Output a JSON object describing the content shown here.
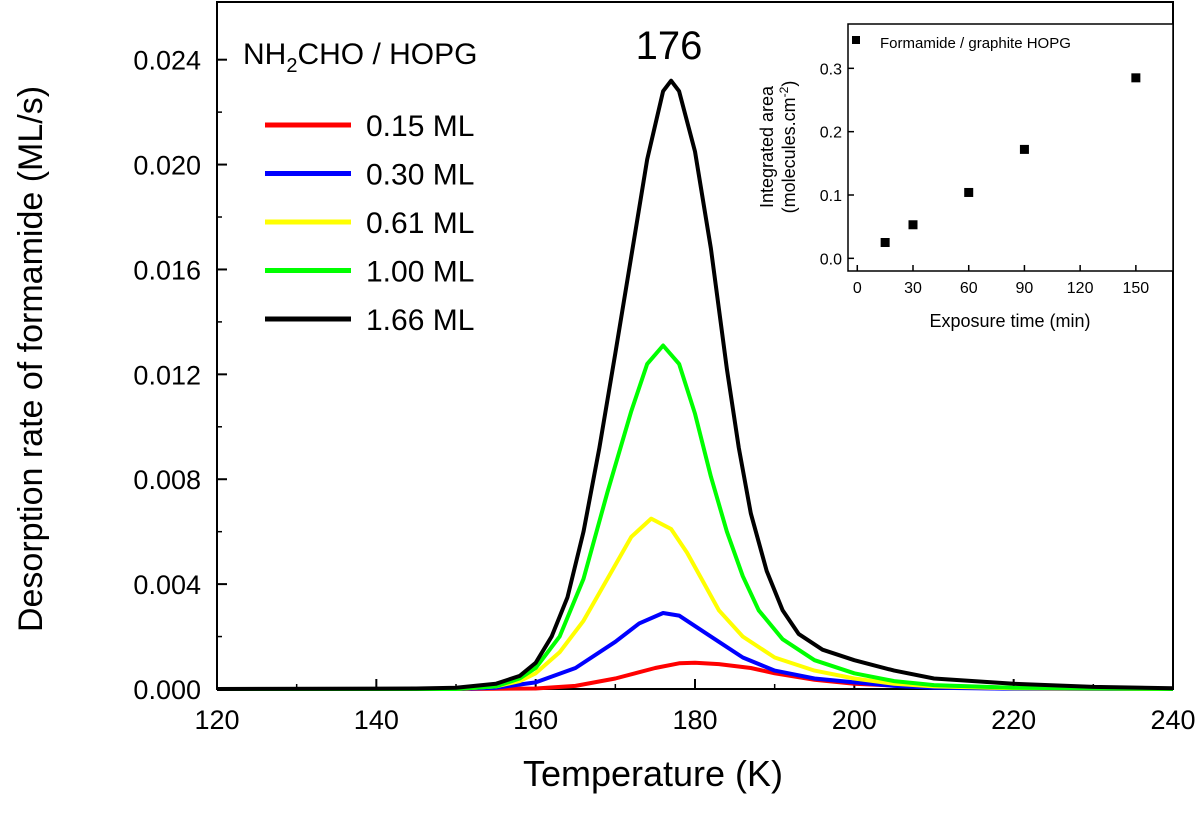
{
  "main_chart": {
    "xlabel": "Temperature (K)",
    "ylabel": "Desorption rate of formamide (ML/s)",
    "xlim": [
      120,
      240
    ],
    "ylim": [
      0,
      0.0262
    ],
    "xticks": [
      120,
      140,
      160,
      180,
      200,
      220,
      240
    ],
    "yticks": [
      "0.000",
      "0.004",
      "0.008",
      "0.012",
      "0.016",
      "0.020",
      "0.024"
    ],
    "system_label": {
      "prefix": "NH",
      "sub": "2",
      "suffix": "CHO / HOPG"
    },
    "peak_label": "176",
    "legend_position": "upper-left"
  },
  "inset_chart": {
    "xlabel": "Exposure time (min)",
    "ylabel_line1": "Integrated area",
    "ylabel_line2": "(molecules.cm",
    "ylabel_sup": "-2",
    "ylabel_close": ")",
    "legend_label": "Formamide / graphite HOPG",
    "xticks": [
      "0",
      "30",
      "60",
      "90",
      "120",
      "150"
    ],
    "yticks": [
      "0.0",
      "0.1",
      "0.2",
      "0.3"
    ]
  },
  "chart_data": [
    {
      "type": "line",
      "x_unit": "K",
      "xlim": [
        120,
        240
      ],
      "ylim": [
        0,
        0.0262
      ],
      "grid": false,
      "series": [
        {
          "name": "0.15 ML",
          "color": "#ff0000",
          "peak_T": 179.5,
          "peak_rate": 0.001,
          "points": [
            [
              120,
              0
            ],
            [
              150,
              0
            ],
            [
              160,
              2e-05
            ],
            [
              165,
              0.00012
            ],
            [
              170,
              0.0004
            ],
            [
              175,
              0.0008
            ],
            [
              178,
              0.00098
            ],
            [
              180,
              0.001
            ],
            [
              183,
              0.00095
            ],
            [
              187,
              0.0008
            ],
            [
              190,
              0.0006
            ],
            [
              195,
              0.00035
            ],
            [
              200,
              0.0002
            ],
            [
              210,
              6e-05
            ],
            [
              220,
              2e-05
            ],
            [
              240,
              0
            ]
          ]
        },
        {
          "name": "0.30 ML",
          "color": "#0000ff",
          "peak_T": 176,
          "peak_rate": 0.0029,
          "points": [
            [
              120,
              0
            ],
            [
              150,
              0
            ],
            [
              155,
              5e-05
            ],
            [
              160,
              0.00025
            ],
            [
              165,
              0.0008
            ],
            [
              170,
              0.0018
            ],
            [
              173,
              0.0025
            ],
            [
              176,
              0.0029
            ],
            [
              178,
              0.0028
            ],
            [
              180,
              0.0024
            ],
            [
              183,
              0.0018
            ],
            [
              186,
              0.0012
            ],
            [
              190,
              0.0007
            ],
            [
              195,
              0.0004
            ],
            [
              200,
              0.00025
            ],
            [
              205,
              0.00012
            ],
            [
              210,
              5e-05
            ],
            [
              220,
              1e-05
            ],
            [
              240,
              0
            ]
          ]
        },
        {
          "name": "0.61 ML",
          "color": "#ffff00",
          "peak_T": 174.5,
          "peak_rate": 0.0065,
          "points": [
            [
              120,
              0
            ],
            [
              150,
              0
            ],
            [
              155,
              0.0001
            ],
            [
              158,
              0.0003
            ],
            [
              160,
              0.0006
            ],
            [
              163,
              0.0014
            ],
            [
              166,
              0.0026
            ],
            [
              169,
              0.0042
            ],
            [
              172,
              0.0058
            ],
            [
              174.5,
              0.0065
            ],
            [
              177,
              0.0061
            ],
            [
              179,
              0.0052
            ],
            [
              181,
              0.0041
            ],
            [
              183,
              0.003
            ],
            [
              186,
              0.002
            ],
            [
              190,
              0.0012
            ],
            [
              195,
              0.0007
            ],
            [
              200,
              0.0004
            ],
            [
              205,
              0.0002
            ],
            [
              210,
              0.0001
            ],
            [
              220,
              3e-05
            ],
            [
              240,
              0
            ]
          ]
        },
        {
          "name": "1.00 ML",
          "color": "#00ff00",
          "peak_T": 176,
          "peak_rate": 0.0131,
          "points": [
            [
              120,
              0
            ],
            [
              150,
              0
            ],
            [
              155,
              0.0001
            ],
            [
              158,
              0.0004
            ],
            [
              160,
              0.0008
            ],
            [
              163,
              0.002
            ],
            [
              166,
              0.0042
            ],
            [
              169,
              0.0075
            ],
            [
              172,
              0.0106
            ],
            [
              174,
              0.0124
            ],
            [
              176,
              0.0131
            ],
            [
              178,
              0.0124
            ],
            [
              180,
              0.0105
            ],
            [
              182,
              0.0081
            ],
            [
              184,
              0.006
            ],
            [
              186,
              0.0043
            ],
            [
              188,
              0.003
            ],
            [
              191,
              0.0019
            ],
            [
              195,
              0.0011
            ],
            [
              200,
              0.0006
            ],
            [
              205,
              0.0003
            ],
            [
              210,
              0.00015
            ],
            [
              220,
              5e-05
            ],
            [
              240,
              0
            ]
          ]
        },
        {
          "name": "1.66 ML",
          "color": "#000000",
          "peak_T": 177,
          "peak_rate": 0.0232,
          "points": [
            [
              120,
              0
            ],
            [
              145,
              2e-05
            ],
            [
              150,
              5e-05
            ],
            [
              155,
              0.0002
            ],
            [
              158,
              0.0005
            ],
            [
              160,
              0.001
            ],
            [
              162,
              0.002
            ],
            [
              164,
              0.0035
            ],
            [
              166,
              0.006
            ],
            [
              168,
              0.0092
            ],
            [
              170,
              0.0128
            ],
            [
              172,
              0.0165
            ],
            [
              174,
              0.0202
            ],
            [
              176,
              0.0228
            ],
            [
              177,
              0.0232
            ],
            [
              178,
              0.0228
            ],
            [
              180,
              0.0205
            ],
            [
              182,
              0.0168
            ],
            [
              184,
              0.0122
            ],
            [
              185.5,
              0.0092
            ],
            [
              187,
              0.0067
            ],
            [
              189,
              0.0045
            ],
            [
              191,
              0.003
            ],
            [
              193,
              0.0021
            ],
            [
              196,
              0.0015
            ],
            [
              200,
              0.0011
            ],
            [
              205,
              0.0007
            ],
            [
              210,
              0.0004
            ],
            [
              220,
              0.0002
            ],
            [
              230,
              8e-05
            ],
            [
              240,
              3e-05
            ]
          ]
        }
      ]
    },
    {
      "type": "scatter",
      "xlim": [
        -5,
        170
      ],
      "ylim": [
        -0.02,
        0.37
      ],
      "grid": false,
      "series": [
        {
          "name": "Formamide / graphite HOPG",
          "color": "#000000",
          "points": [
            [
              15,
              0.025
            ],
            [
              30,
              0.053
            ],
            [
              60,
              0.104
            ],
            [
              90,
              0.172
            ],
            [
              150,
              0.285
            ]
          ]
        }
      ]
    }
  ]
}
